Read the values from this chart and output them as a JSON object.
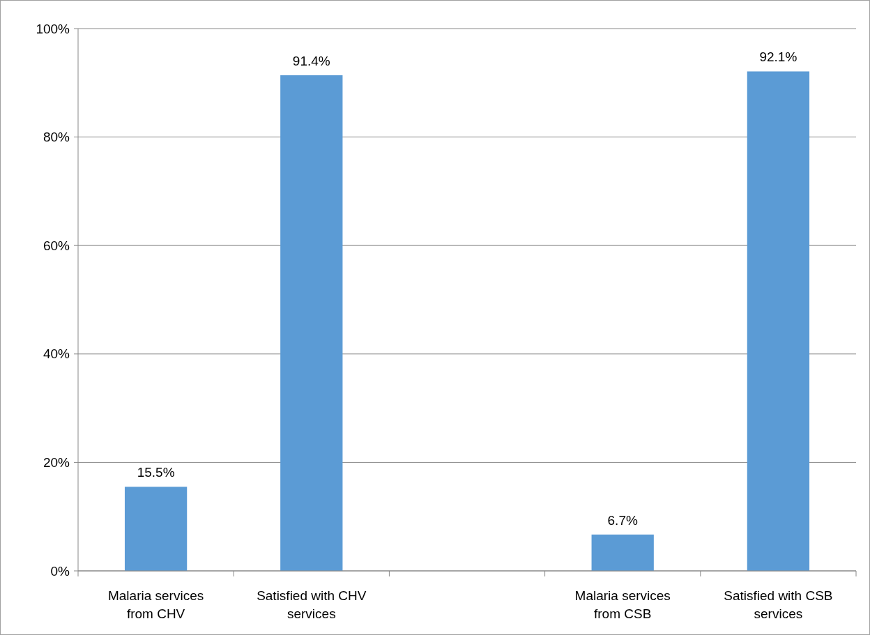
{
  "chart_data": {
    "type": "bar",
    "categories": [
      "Malaria services from CHV",
      "Satisfied with CHV services",
      null,
      "Malaria services from CSB",
      "Satisfied with CSB services"
    ],
    "values": [
      15.5,
      91.4,
      null,
      6.7,
      92.1
    ],
    "value_labels": [
      "15.5%",
      "91.4%",
      null,
      "6.7%",
      "92.1%"
    ],
    "color": "#5b9bd5",
    "ylim": [
      0,
      100
    ],
    "yticks": [
      {
        "value": 0,
        "label": "0%"
      },
      {
        "value": 20,
        "label": "20%"
      },
      {
        "value": 40,
        "label": "40%"
      },
      {
        "value": 60,
        "label": "60%"
      },
      {
        "value": 80,
        "label": "80%"
      },
      {
        "value": 100,
        "label": "100%"
      }
    ],
    "grid": "y"
  }
}
